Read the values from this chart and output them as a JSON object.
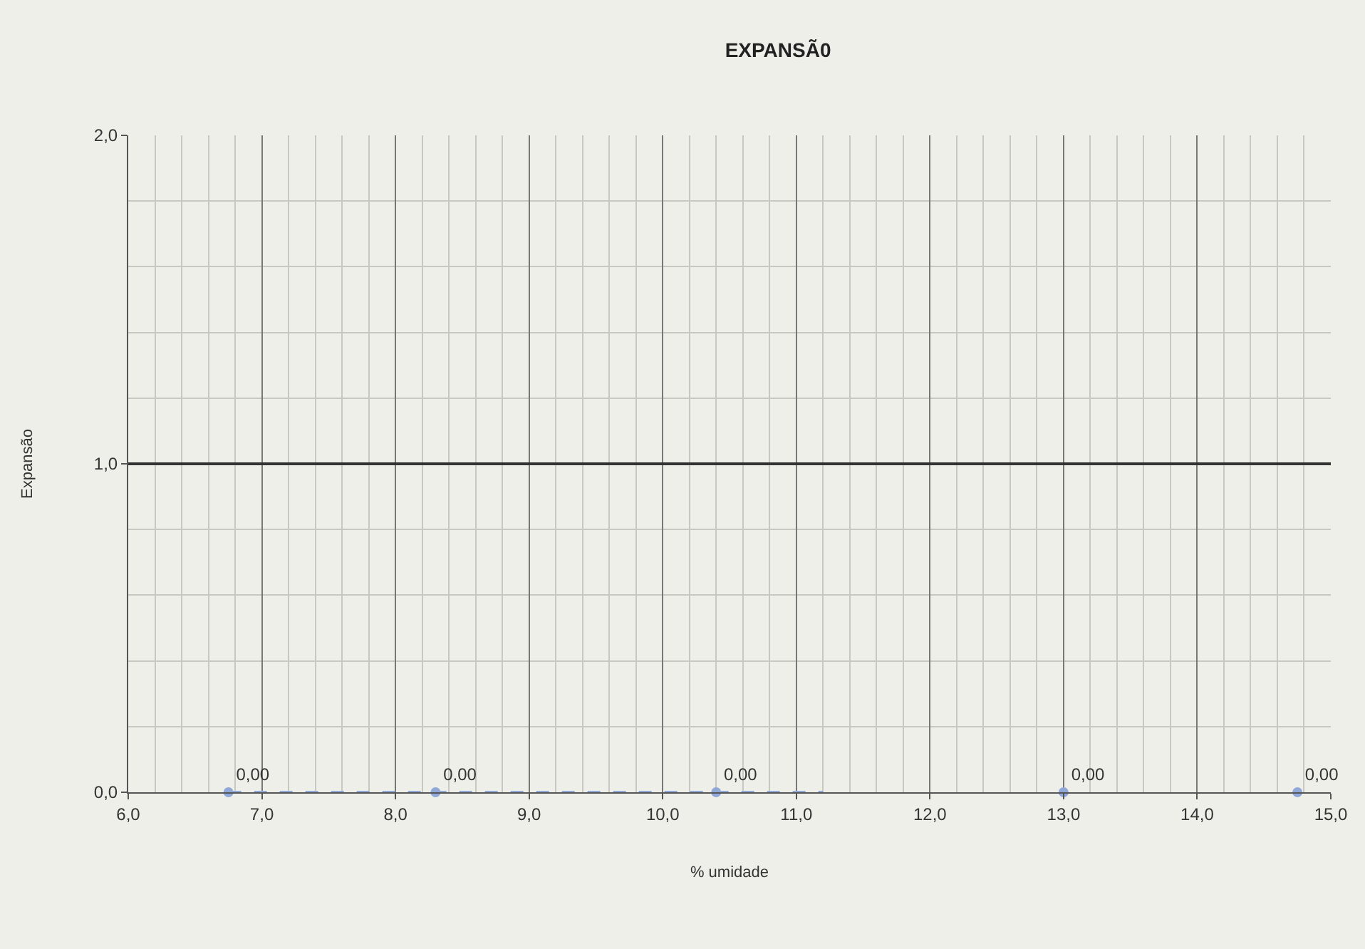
{
  "chart_data": {
    "type": "scatter",
    "title": "EXPANSÃ0",
    "xlabel": "% umidade",
    "ylabel": "Expansão",
    "xlim": [
      6,
      15
    ],
    "ylim": [
      0,
      2
    ],
    "xticks": [
      {
        "value": 6,
        "label": "6,0"
      },
      {
        "value": 7,
        "label": "7,0"
      },
      {
        "value": 8,
        "label": "8,0"
      },
      {
        "value": 9,
        "label": "9,0"
      },
      {
        "value": 10,
        "label": "10,0"
      },
      {
        "value": 11,
        "label": "11,0"
      },
      {
        "value": 12,
        "label": "12,0"
      },
      {
        "value": 13,
        "label": "13,0"
      },
      {
        "value": 14,
        "label": "14,0"
      },
      {
        "value": 15,
        "label": "15,0"
      }
    ],
    "yticks": [
      {
        "value": 0,
        "label": "0,0"
      },
      {
        "value": 1,
        "label": "1,0"
      },
      {
        "value": 2,
        "label": "2,0"
      }
    ],
    "grid": true,
    "marker": "circle",
    "series": [
      {
        "color": "#8fa8d8",
        "x": [
          6.75,
          8.3,
          10.4,
          13.0,
          14.75
        ],
        "values": [
          0,
          0,
          0,
          0,
          0
        ],
        "value_labels": [
          "0,00",
          "0,00",
          "0,00",
          "0,00",
          "0,00"
        ]
      },
      {
        "type": "line",
        "color": "#8fa8d8",
        "line_style": "dashed",
        "marker": "none",
        "x": [
          6.75,
          11.2
        ],
        "values": [
          0,
          0
        ]
      }
    ],
    "ref_lines": [
      {
        "axis": "y",
        "value": 1,
        "label": null,
        "color": "#333333",
        "line_style": "solid"
      }
    ]
  }
}
